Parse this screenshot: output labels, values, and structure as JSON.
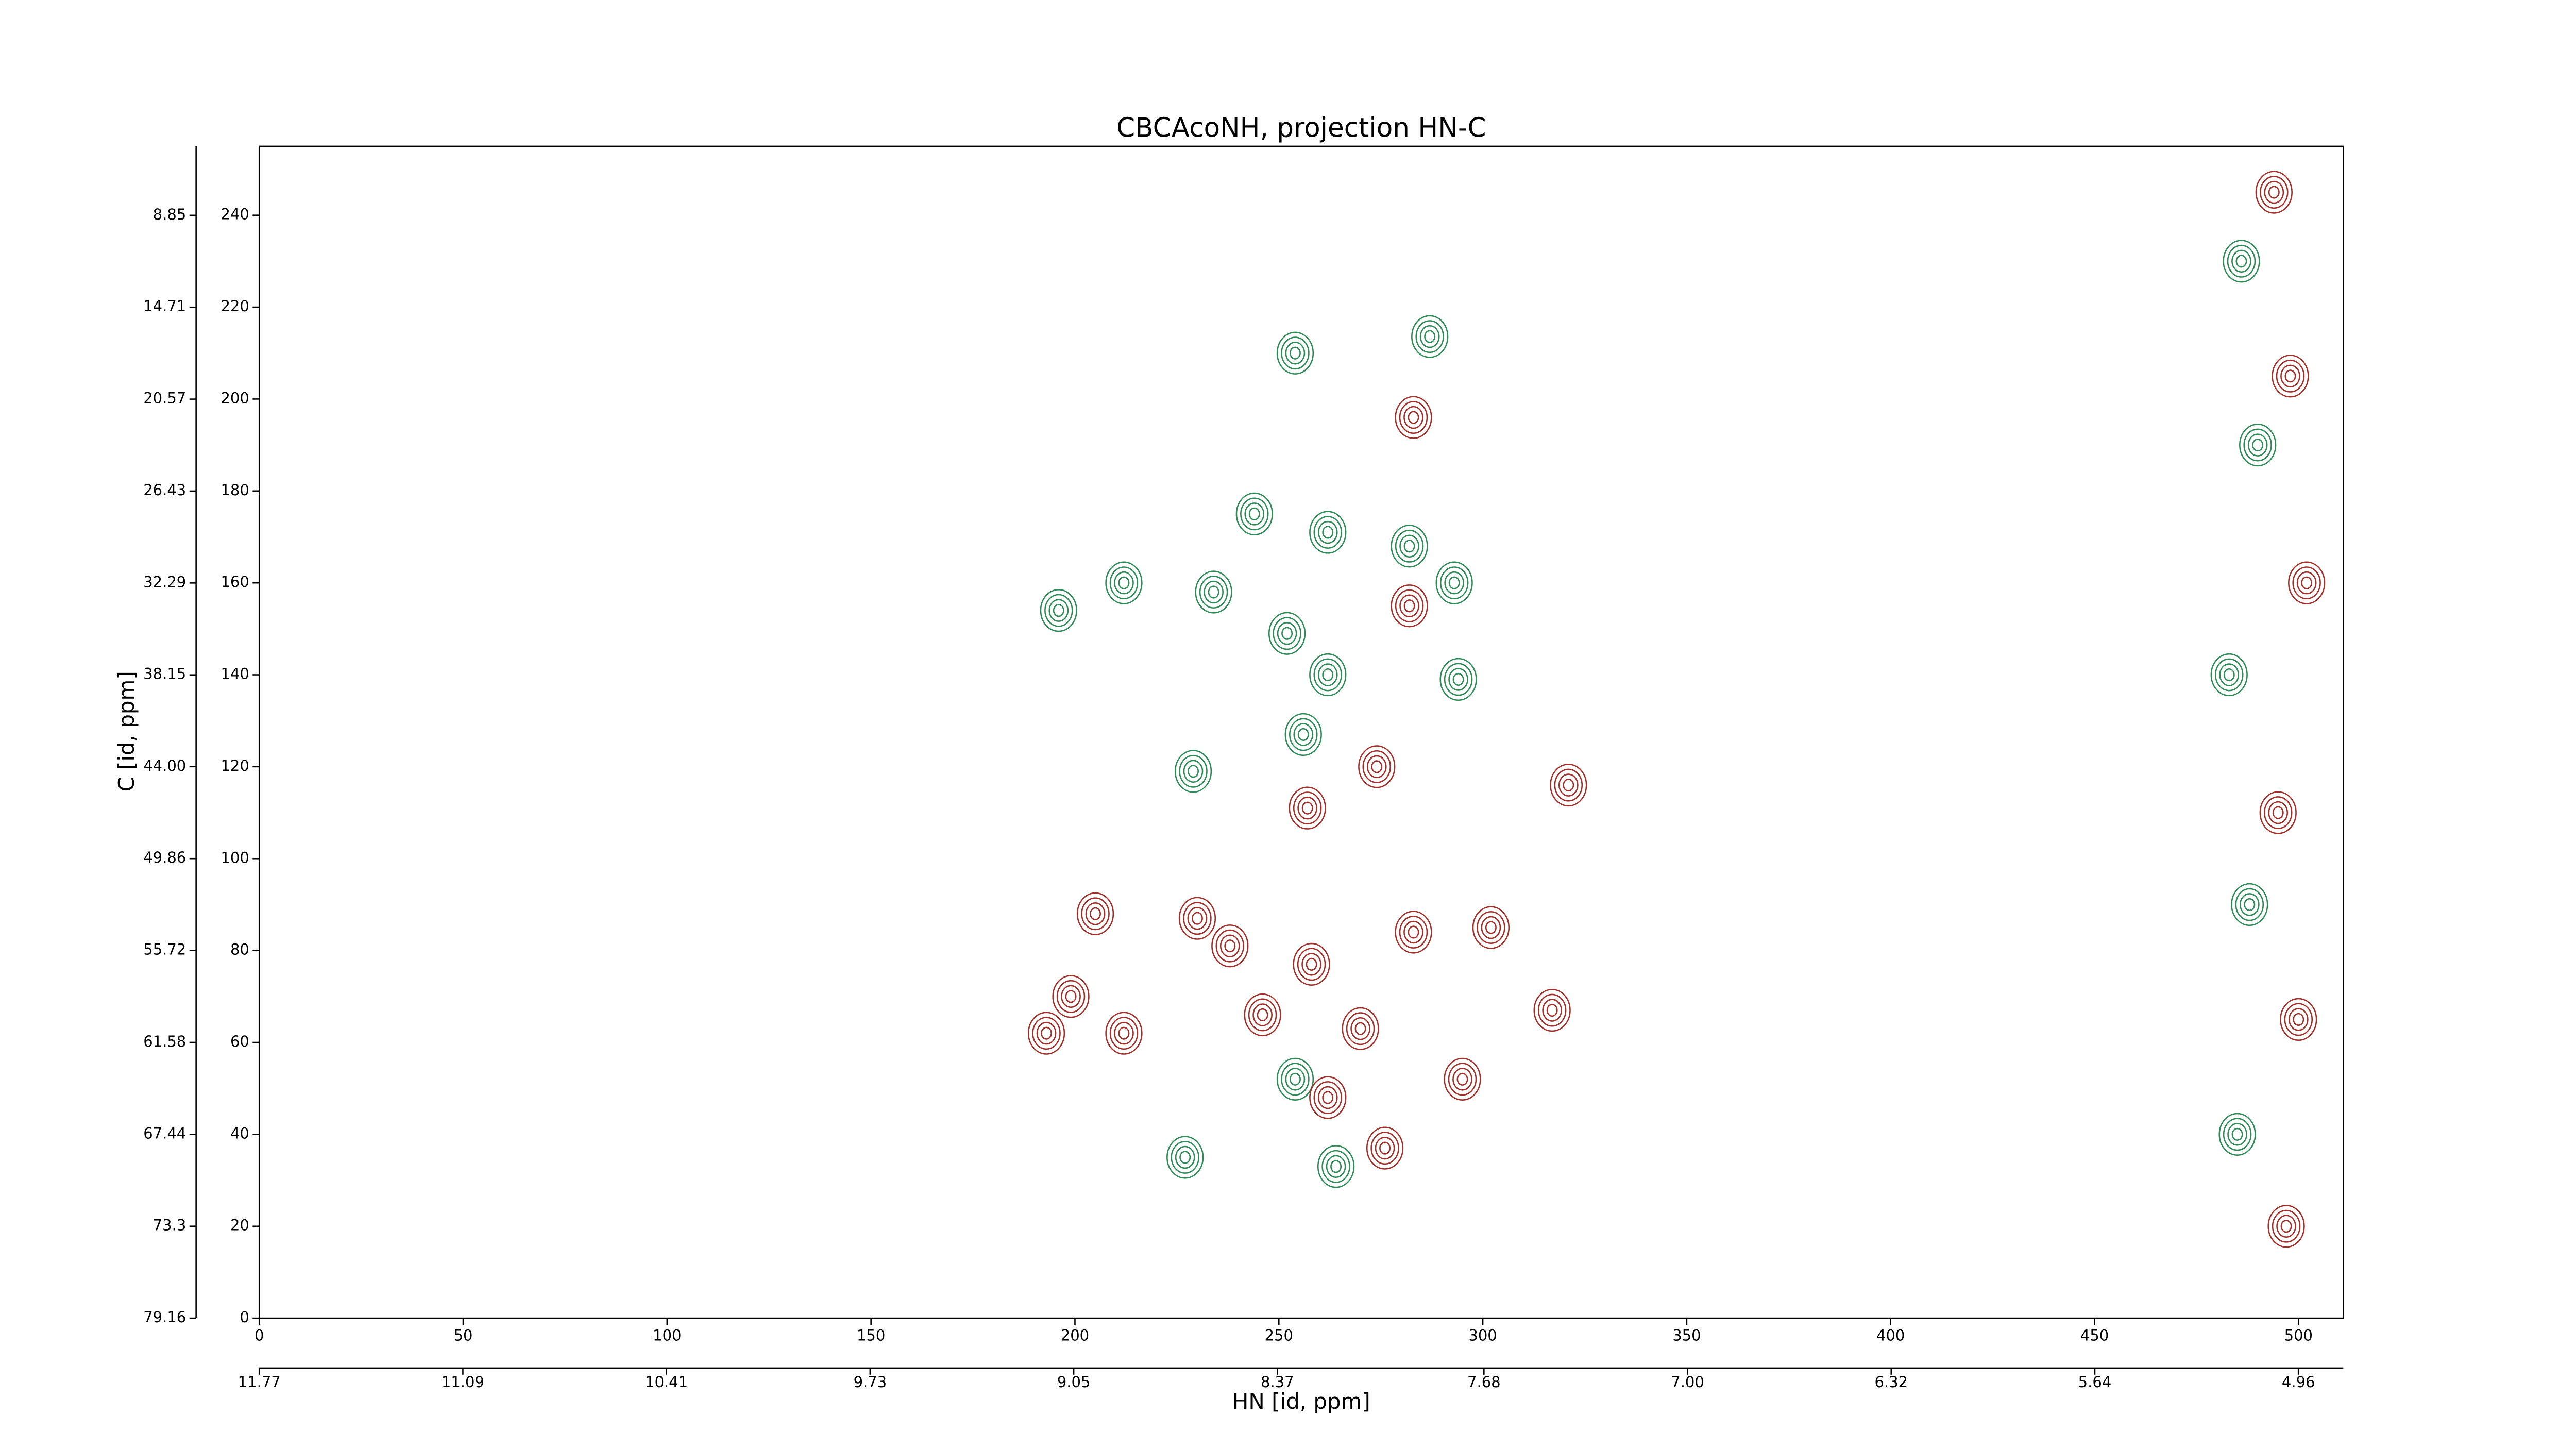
{
  "chart_data": {
    "type": "contour",
    "title": "CBCAcoNH, projection HN-C",
    "xlabel": "HN [id, ppm]",
    "ylabel": "C [id, ppm]",
    "xlim": [
      0,
      511
    ],
    "ylim": [
      0,
      255
    ],
    "xticks": [
      0,
      50,
      100,
      150,
      200,
      250,
      300,
      350,
      400,
      450,
      500
    ],
    "yticks": [
      0,
      20,
      40,
      60,
      80,
      100,
      120,
      140,
      160,
      180,
      200,
      220,
      240
    ],
    "x2lim": [
      11.77,
      4.81
    ],
    "x2ticks": [
      11.77,
      11.09,
      10.41,
      9.73,
      9.05,
      8.37,
      7.68,
      {
        "value": 7,
        "label": "7.00"
      },
      6.32,
      5.64,
      4.96
    ],
    "y2lim": [
      79.16,
      4.45
    ],
    "y2ticks": [
      8.85,
      14.71,
      20.57,
      26.43,
      32.29,
      38.15,
      {
        "value": 44,
        "label": "44.00"
      },
      49.86,
      55.72,
      61.58,
      67.44,
      73.3,
      79.16
    ],
    "series": [
      {
        "color": "#2e8b57",
        "x": [
          287,
          254,
          244,
          262,
          282,
          293,
          212,
          196,
          234,
          252,
          262,
          294,
          229,
          256,
          254,
          264,
          227,
          485,
          488,
          483,
          490,
          486
        ],
        "y": [
          213.6,
          210,
          175,
          171,
          168,
          160,
          160,
          154,
          158,
          149,
          140,
          139,
          119,
          127,
          52,
          33,
          35,
          40,
          90,
          140,
          190,
          230
        ]
      },
      {
        "color": "#a0302a",
        "x": [
          283,
          282,
          257,
          274,
          321,
          205,
          230,
          238,
          258,
          283,
          302,
          212,
          199,
          193,
          246,
          270,
          317,
          262,
          276,
          295,
          497,
          500,
          495,
          502,
          498,
          494
        ],
        "y": [
          196,
          155,
          111,
          120,
          116,
          88,
          87,
          81,
          77,
          84,
          85,
          62,
          70,
          62,
          66,
          63,
          67,
          48,
          37,
          52,
          20,
          65,
          110,
          160,
          205,
          245
        ]
      }
    ]
  }
}
